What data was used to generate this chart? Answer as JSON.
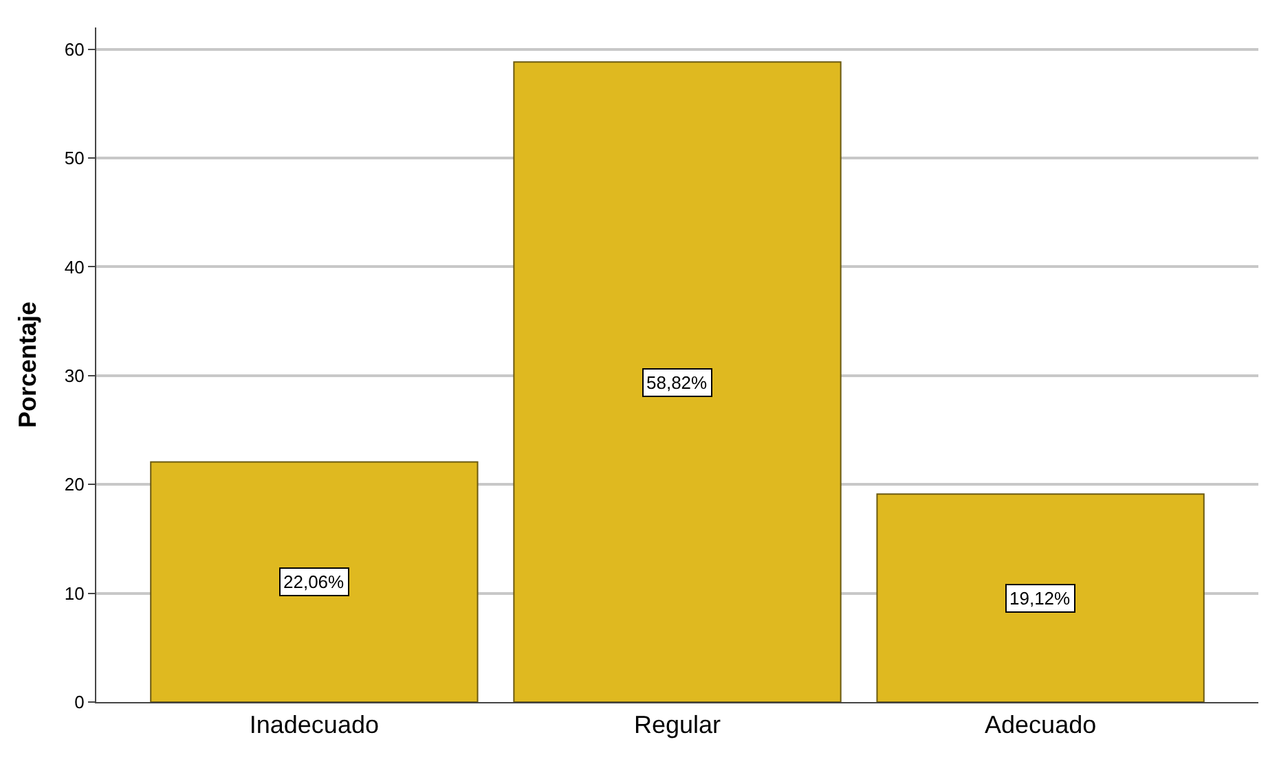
{
  "chart_data": {
    "type": "bar",
    "ylabel": "Porcentaje",
    "categories": [
      "Inadecuado",
      "Regular",
      "Adecuado"
    ],
    "values": [
      22.06,
      58.82,
      19.12
    ],
    "value_labels": [
      "22,06%",
      "58,82%",
      "19,12%"
    ],
    "color": "#dfb920",
    "ylim": [
      0,
      62
    ],
    "yticks": [
      0,
      10,
      20,
      30,
      40,
      50,
      60
    ],
    "grid": "y",
    "legend": false
  }
}
